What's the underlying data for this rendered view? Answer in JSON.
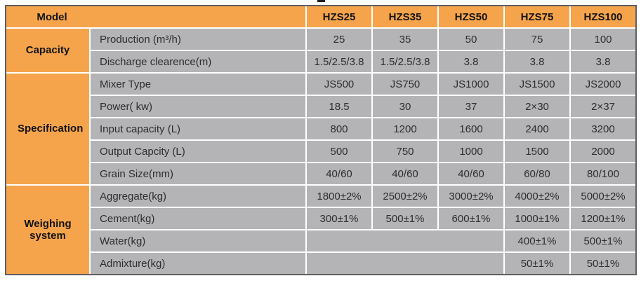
{
  "colors": {
    "header_orange": "#f5a44c",
    "cell_gray": "#b4b4b7",
    "divider_white": "#ffffff",
    "outer_border": "#5f5f5f",
    "text_dark": "#2e2e2e"
  },
  "artifact_note": "tiny cropped text remnant above table",
  "table": {
    "corner_label": "Model",
    "model_columns": [
      "HZS25",
      "HZS35",
      "HZS50",
      "HZS75",
      "HZS100"
    ],
    "groups": [
      {
        "label": "Capacity",
        "rows": [
          {
            "label": "Production (m³/h)",
            "values": [
              "25",
              "35",
              "50",
              "75",
              "100"
            ]
          },
          {
            "label": "Discharge clearence(m)",
            "values": [
              "1.5/2.5/3.8",
              "1.5/2.5/3.8",
              "3.8",
              "3.8",
              "3.8"
            ]
          }
        ]
      },
      {
        "label": "Specification",
        "rows": [
          {
            "label": "Mixer Type",
            "values": [
              "JS500",
              "JS750",
              "JS1000",
              "JS1500",
              "JS2000"
            ]
          },
          {
            "label": "Power( kw)",
            "values": [
              "18.5",
              "30",
              "37",
              "2×30",
              "2×37"
            ]
          },
          {
            "label": "Input capacity (L)",
            "values": [
              "800",
              "1200",
              "1600",
              "2400",
              "3200"
            ]
          },
          {
            "label": "Output Capcity (L)",
            "values": [
              "500",
              "750",
              "1000",
              "1500",
              "2000"
            ]
          },
          {
            "label": "Grain Size(mm)",
            "values": [
              "40/60",
              "40/60",
              "40/60",
              "60/80",
              "80/100"
            ]
          }
        ]
      },
      {
        "label": "Weighing system",
        "rows": [
          {
            "label": "Aggregate(kg)",
            "values": [
              "1800±2%",
              "2500±2%",
              "3000±2%",
              "4000±2%",
              "5000±2%"
            ]
          },
          {
            "label": "Cement(kg)",
            "values": [
              "300±1%",
              "500±1%",
              "600±1%",
              "1000±1%",
              "1200±1%"
            ]
          },
          {
            "label": "Water(kg)",
            "merged_empty_cols": 3,
            "values": [
              "",
              "",
              "",
              "400±1%",
              "500±1%"
            ]
          },
          {
            "label": "Admixture(kg)",
            "merged_empty_cols": 3,
            "values": [
              "",
              "",
              "",
              "50±1%",
              "50±1%"
            ]
          }
        ]
      }
    ]
  }
}
